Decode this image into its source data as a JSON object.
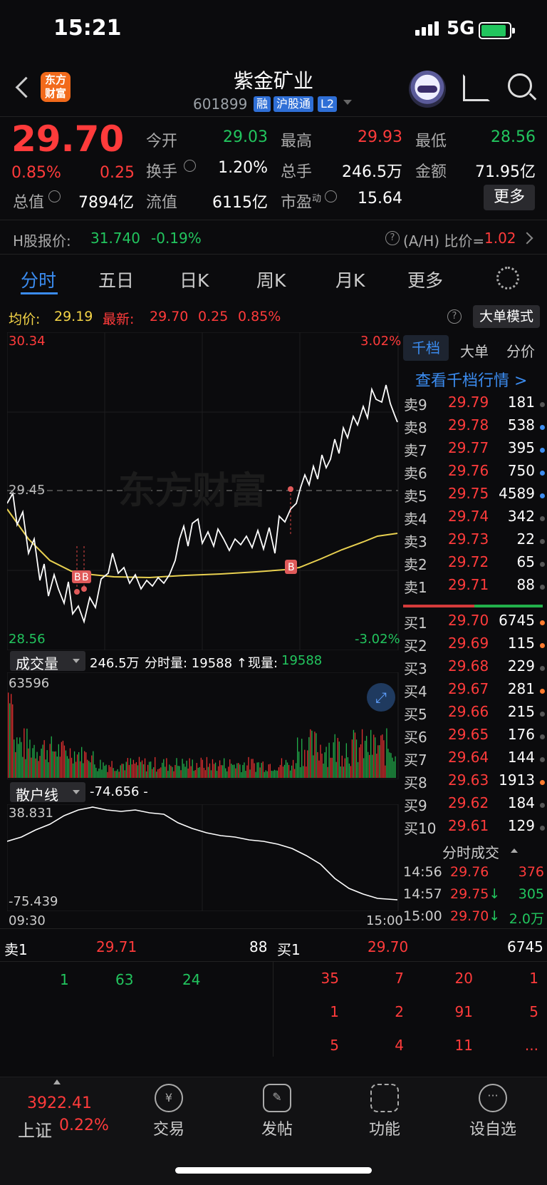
{
  "status_bar": {
    "time": "15:21",
    "network": "5G"
  },
  "header": {
    "title": "紫金矿业",
    "code": "601899",
    "tags": [
      "融",
      "沪股通",
      "L2"
    ],
    "logo_text": "东方\n财富"
  },
  "quote": {
    "price": "29.70",
    "change_pct": "0.85%",
    "change": "0.25",
    "fields": [
      {
        "label": "今开",
        "value": "29.03",
        "color": "green"
      },
      {
        "label": "最高",
        "value": "29.93",
        "color": "red"
      },
      {
        "label": "最低",
        "value": "28.56",
        "color": "green"
      },
      {
        "label": "换手",
        "value": "1.20%",
        "color": "white"
      },
      {
        "label": "总手",
        "value": "246.5万",
        "color": "white"
      },
      {
        "label": "金额",
        "value": "71.95亿",
        "color": "white"
      },
      {
        "label": "总值",
        "value": "7894亿",
        "color": "white"
      },
      {
        "label": "流值",
        "value": "6115亿",
        "color": "white"
      },
      {
        "label": "市盈动",
        "value": "15.64",
        "color": "white"
      }
    ],
    "more_label": "更多"
  },
  "hshare": {
    "label": "H股报价:",
    "price": "31.740",
    "change": "-0.19%",
    "ah_label": "(A/H) 比价=",
    "ah_value": "1.02"
  },
  "tabs": [
    "分时",
    "五日",
    "日K",
    "周K",
    "月K",
    "更多"
  ],
  "intraday": {
    "avg_label": "均价:",
    "avg": "29.19",
    "latest_label": "最新:",
    "latest": "29.70",
    "chg": "0.25",
    "pct": "0.85%",
    "mode_btn": "大单模式",
    "y_high": "30.34",
    "y_mid": "29.45",
    "y_low": "28.56",
    "pct_high": "3.02%",
    "pct_low": "-3.02%",
    "watermark": "东方财富",
    "vol_label": "成交量",
    "vol_total": "246.5万",
    "vol_fen": "分时量: 19588 ↑",
    "vol_now_label": "现量:",
    "vol_now": "19588",
    "vol_max": "63596",
    "retail_label": "散户线",
    "retail_val": "-74.656 -",
    "retail_max": "38.831",
    "retail_min": "-75.439",
    "t_start": "09:30",
    "t_end": "15:00"
  },
  "orderbook": {
    "tabs": [
      "千档",
      "大单",
      "分价"
    ],
    "link": "查看千档行情 >",
    "asks": [
      [
        "卖9",
        "29.79",
        "181"
      ],
      [
        "卖8",
        "29.78",
        "538"
      ],
      [
        "卖7",
        "29.77",
        "395"
      ],
      [
        "卖6",
        "29.76",
        "750"
      ],
      [
        "卖5",
        "29.75",
        "4589"
      ],
      [
        "卖4",
        "29.74",
        "342"
      ],
      [
        "卖3",
        "29.73",
        "22"
      ],
      [
        "卖2",
        "29.72",
        "65"
      ],
      [
        "卖1",
        "29.71",
        "88"
      ]
    ],
    "bids": [
      [
        "买1",
        "29.70",
        "6745"
      ],
      [
        "买2",
        "29.69",
        "115"
      ],
      [
        "买3",
        "29.68",
        "229"
      ],
      [
        "买4",
        "29.67",
        "281"
      ],
      [
        "买5",
        "29.66",
        "215"
      ],
      [
        "买6",
        "29.65",
        "176"
      ],
      [
        "买7",
        "29.64",
        "144"
      ],
      [
        "买8",
        "29.63",
        "1913"
      ],
      [
        "买9",
        "29.62",
        "184"
      ],
      [
        "买10",
        "29.61",
        "129"
      ]
    ],
    "trades_title": "分时成交",
    "trades": [
      [
        "14:56",
        "29.76",
        "376"
      ],
      [
        "14:57",
        "29.75↓",
        "305"
      ],
      [
        "15:00",
        "29.70↓",
        "2.0万"
      ]
    ]
  },
  "queue": {
    "sell_label": "卖1",
    "sell_price": "29.71",
    "sell_qty": "88",
    "buy_label": "买1",
    "buy_price": "29.70",
    "buy_qty": "6745",
    "sell_orders": [
      "1",
      "63",
      "24"
    ],
    "buy_orders": [
      [
        "35",
        "7",
        "20",
        "1"
      ],
      [
        "1",
        "2",
        "91",
        "5"
      ],
      [
        "5",
        "4",
        "11",
        "..."
      ]
    ]
  },
  "bottom_nav": {
    "index_value": "3922.41",
    "index_name": "上证",
    "index_pct": "0.22%",
    "items": [
      "交易",
      "发帖",
      "功能",
      "设自选"
    ]
  }
}
